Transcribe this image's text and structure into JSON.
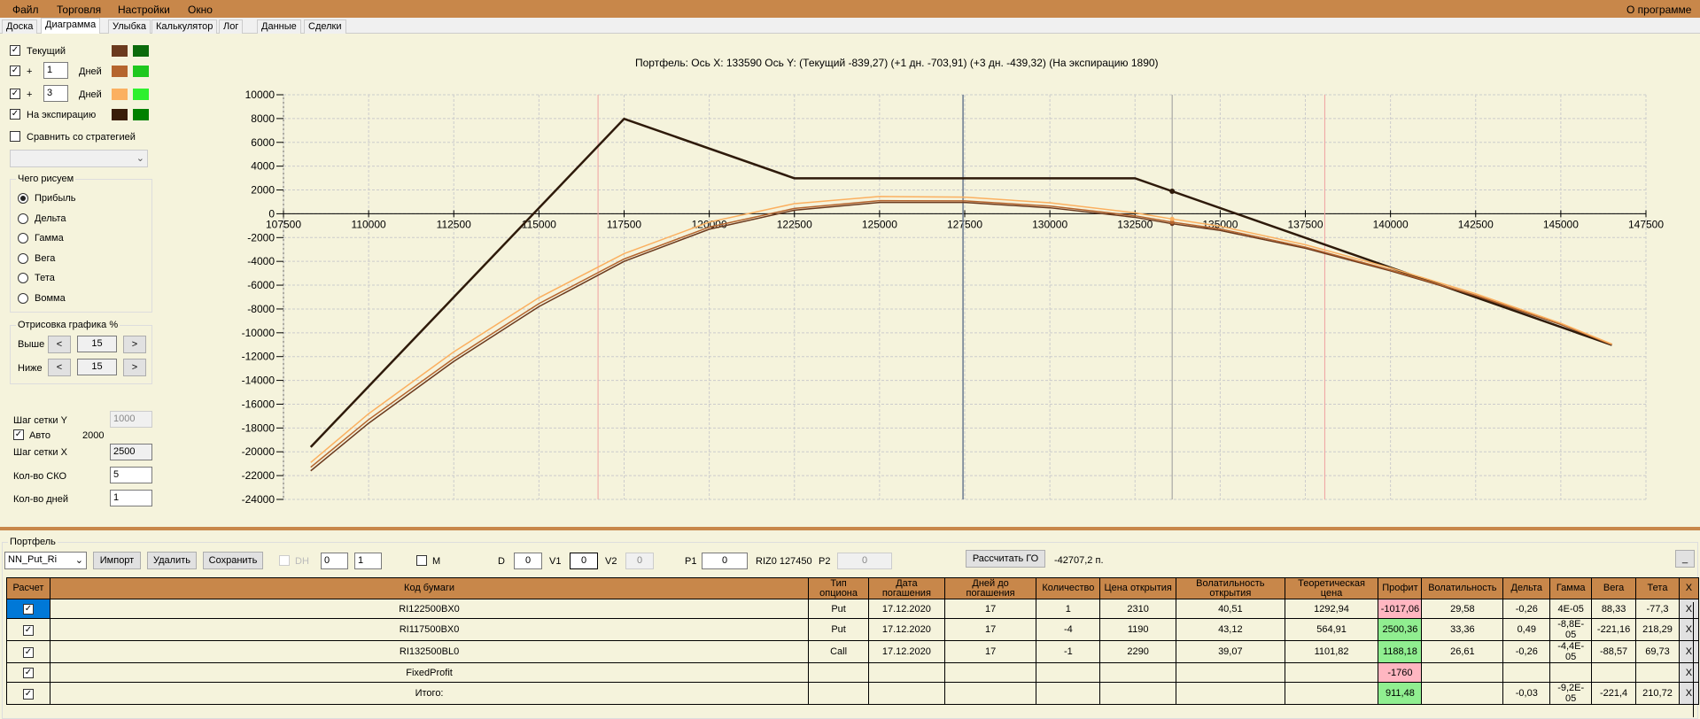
{
  "menu": {
    "items": [
      "Файл",
      "Торговля",
      "Настройки",
      "Окно"
    ],
    "about": "О программе"
  },
  "tabs": [
    "Доска",
    "Диаграмма",
    "Улыбка",
    "Калькулятор",
    "Лог",
    "Данные",
    "Сделки"
  ],
  "tabs_active": "Диаграмма",
  "left": {
    "current": {
      "label": "Текущий",
      "checked": true,
      "colors": [
        "#6b3a1e",
        "#0b6a0b"
      ]
    },
    "day1": {
      "plus": "+",
      "days": "1",
      "unit": "Дней",
      "checked": true,
      "colors": [
        "#b5652e",
        "#1ec81e"
      ]
    },
    "day3": {
      "plus": "+",
      "days": "3",
      "unit": "Дней",
      "checked": true,
      "colors": [
        "#fbb060",
        "#2ef02e"
      ]
    },
    "expiry": {
      "label": "На экспирацию",
      "checked": true,
      "colors": [
        "#3a1d0a",
        "#008000"
      ]
    },
    "compare": {
      "label": "Сравнить со стратегией",
      "checked": false,
      "selected": ""
    },
    "draw_group": "Чего рисуем",
    "draw_options": [
      "Прибыль",
      "Дельта",
      "Гамма",
      "Вега",
      "Тета",
      "Вомма"
    ],
    "draw_selected": "Прибыль",
    "render_group": "Отрисовка графика %",
    "above_label": "Выше",
    "above_value": "15",
    "below_label": "Ниже",
    "below_value": "15",
    "dec": "<",
    "inc": ">",
    "grid_y_label": "Шаг сетки Y",
    "grid_y_value": "1000",
    "auto_label": "Авто",
    "auto_checked": true,
    "auto_value": "2000",
    "grid_x_label": "Шаг сетки X",
    "grid_x_value": "2500",
    "sko_label": "Кол-во СКО",
    "sko_value": "5",
    "days_label": "Кол-во дней",
    "days_value": "1"
  },
  "chart_data": {
    "type": "line",
    "title": "Портфель: Ось X: 133590 Ось Y:  (Текущий -839,27)  (+1 дн. -703,91)  (+3 дн. -439,32)  (На экспирацию 1890)",
    "xlim": [
      107500,
      147500
    ],
    "ylim": [
      -24000,
      10000
    ],
    "xticks": [
      107500,
      110000,
      112500,
      115000,
      117500,
      120000,
      122500,
      125000,
      127500,
      130000,
      132500,
      135000,
      137500,
      140000,
      142500,
      145000,
      147500
    ],
    "yticks": [
      10000,
      8000,
      6000,
      4000,
      2000,
      0,
      -2000,
      -4000,
      -6000,
      -8000,
      -10000,
      -12000,
      -14000,
      -16000,
      -18000,
      -20000,
      -22000,
      -24000
    ],
    "grid": true,
    "vlines": [
      {
        "x": 116735,
        "color": "#f0a0a0"
      },
      {
        "x": 138070,
        "color": "#f0a0a0"
      },
      {
        "x": 127450,
        "color": "#6a7a90"
      },
      {
        "x": 133590,
        "color": "#9a9a9a"
      }
    ],
    "cursor_x": 133590,
    "series": [
      {
        "key": "expiry",
        "color": "#2e1a0a",
        "points": [
          [
            108300,
            -19600
          ],
          [
            117500,
            7980
          ],
          [
            122500,
            2980
          ],
          [
            132500,
            2980
          ],
          [
            146500,
            -11020
          ]
        ]
      },
      {
        "key": "current",
        "color": "#6b3a1e",
        "points": [
          [
            108300,
            -21600
          ],
          [
            110000,
            -17600
          ],
          [
            112500,
            -12400
          ],
          [
            115000,
            -7800
          ],
          [
            117500,
            -4000
          ],
          [
            120000,
            -1300
          ],
          [
            122500,
            300
          ],
          [
            125000,
            950
          ],
          [
            127500,
            950
          ],
          [
            130000,
            500
          ],
          [
            132500,
            -300
          ],
          [
            133590,
            -839
          ],
          [
            135000,
            -1400
          ],
          [
            137500,
            -2900
          ],
          [
            140000,
            -4800
          ],
          [
            142500,
            -6900
          ],
          [
            145000,
            -9300
          ],
          [
            146500,
            -11000
          ]
        ]
      },
      {
        "key": "day1",
        "color": "#b5652e",
        "points": [
          [
            108300,
            -21300
          ],
          [
            110000,
            -17300
          ],
          [
            112500,
            -12150
          ],
          [
            115000,
            -7550
          ],
          [
            117500,
            -3800
          ],
          [
            120000,
            -1120
          ],
          [
            122500,
            450
          ],
          [
            125000,
            1100
          ],
          [
            127500,
            1080
          ],
          [
            130000,
            640
          ],
          [
            132500,
            -170
          ],
          [
            133590,
            -704
          ],
          [
            135000,
            -1280
          ],
          [
            137500,
            -2800
          ],
          [
            140000,
            -4720
          ],
          [
            142500,
            -6850
          ],
          [
            145000,
            -9270
          ],
          [
            146500,
            -11000
          ]
        ]
      },
      {
        "key": "day3",
        "color": "#fbb060",
        "points": [
          [
            108300,
            -20900
          ],
          [
            110000,
            -16800
          ],
          [
            112500,
            -11600
          ],
          [
            115000,
            -7050
          ],
          [
            117500,
            -3350
          ],
          [
            120000,
            -700
          ],
          [
            122500,
            850
          ],
          [
            125000,
            1450
          ],
          [
            127500,
            1400
          ],
          [
            130000,
            920
          ],
          [
            132500,
            80
          ],
          [
            133590,
            -439
          ],
          [
            135000,
            -1050
          ],
          [
            137500,
            -2600
          ],
          [
            140000,
            -4550
          ],
          [
            142500,
            -6720
          ],
          [
            145000,
            -9200
          ],
          [
            146500,
            -10950
          ]
        ]
      }
    ]
  },
  "portfolio": {
    "group": "Портфель",
    "name": "NN_Put_Ri",
    "import": "Импорт",
    "delete": "Удалить",
    "save": "Сохранить",
    "dh_label": "DH",
    "spin1": "0",
    "spin2": "1",
    "m_label": "M",
    "d_label": "D",
    "d_value": "0",
    "v1_label": "V1",
    "v1_value": "0",
    "v2_label": "V2",
    "v2_value": "0",
    "p1_label": "P1",
    "p1_value": "0",
    "riz": "RIZ0 127450",
    "p2_label": "P2",
    "p2_value": "0",
    "calc": "Рассчитать ГО",
    "go_value": "-42707,2 п.",
    "minimize": "_"
  },
  "table": {
    "headers": [
      "Расчет",
      "Код бумаги",
      "Тип опциона",
      "Дата погашения",
      "Дней до погашения",
      "Количество",
      "Цена открытия",
      "Волатильность открытия",
      "Теоретическая цена",
      "Профит",
      "Волатильность",
      "Дельта",
      "Гамма",
      "Вега",
      "Тета",
      "X"
    ],
    "rows": [
      {
        "checked": true,
        "cells": [
          "RI122500BX0",
          "Put",
          "17.12.2020",
          "17",
          "1",
          "2310",
          "40,51",
          "1292,94",
          "-1017,06",
          "29,58",
          "-0,26",
          "4E-05",
          "88,33",
          "-77,3"
        ],
        "profit": "neg"
      },
      {
        "checked": true,
        "cells": [
          "RI117500BX0",
          "Put",
          "17.12.2020",
          "17",
          "-4",
          "1190",
          "43,12",
          "564,91",
          "2500,36",
          "33,36",
          "0,49",
          "-8,8E-05",
          "-221,16",
          "218,29"
        ],
        "profit": "pos"
      },
      {
        "checked": true,
        "cells": [
          "RI132500BL0",
          "Call",
          "17.12.2020",
          "17",
          "-1",
          "2290",
          "39,07",
          "1101,82",
          "1188,18",
          "26,61",
          "-0,26",
          "-4,4E-05",
          "-88,57",
          "69,73"
        ],
        "profit": "pos"
      },
      {
        "checked": true,
        "cells": [
          "FixedProfit",
          "",
          "",
          "",
          "",
          "",
          "",
          "",
          "-1760",
          "",
          "",
          "",
          "",
          ""
        ],
        "profit": "neg"
      },
      {
        "checked": true,
        "cells": [
          "Итого:",
          "",
          "",
          "",
          "",
          "",
          "",
          "",
          "911,48",
          "",
          "-0,03",
          "-9,2E-05",
          "-221,4",
          "210,72"
        ],
        "profit": "pos"
      }
    ],
    "delete_label": "X"
  }
}
